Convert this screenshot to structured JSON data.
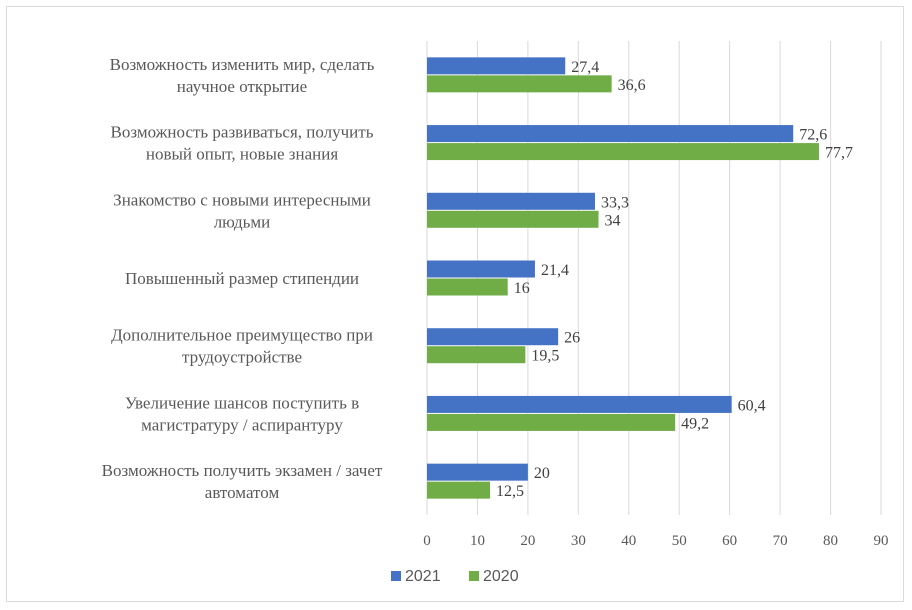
{
  "chart_data": {
    "type": "bar",
    "orientation": "horizontal",
    "categories": [
      [
        "Возможность изменить мир, сделать",
        "научное открытие"
      ],
      [
        "Возможность развиваться, получить",
        "новый опыт, новые знания"
      ],
      [
        "Знакомство с новыми интересными",
        "людьми"
      ],
      [
        "Повышенный размер стипендии"
      ],
      [
        "Дополнительное преимущество при",
        "трудоустройстве"
      ],
      [
        "Увеличение шансов поступить в",
        "магистратуру / аспирантуру"
      ],
      [
        "Возможность получить экзамен / зачет",
        "автоматом"
      ]
    ],
    "series": [
      {
        "name": "2021",
        "color": "#4472c4",
        "values": [
          27.4,
          72.6,
          33.3,
          21.4,
          26,
          60.4,
          20
        ],
        "labels": [
          "27,4",
          "72,6",
          "33,3",
          "21,4",
          "26",
          "60,4",
          "20"
        ]
      },
      {
        "name": "2020",
        "color": "#70ad47",
        "values": [
          36.6,
          77.7,
          34,
          16,
          19.5,
          49.2,
          12.5
        ],
        "labels": [
          "36,6",
          "77,7",
          "34",
          "16",
          "19,5",
          "49,2",
          "12,5"
        ]
      }
    ],
    "xlim": [
      0,
      90
    ],
    "xticks": [
      0,
      10,
      20,
      30,
      40,
      50,
      60,
      70,
      80,
      90
    ],
    "grid": true,
    "legend": "bottom-center"
  }
}
